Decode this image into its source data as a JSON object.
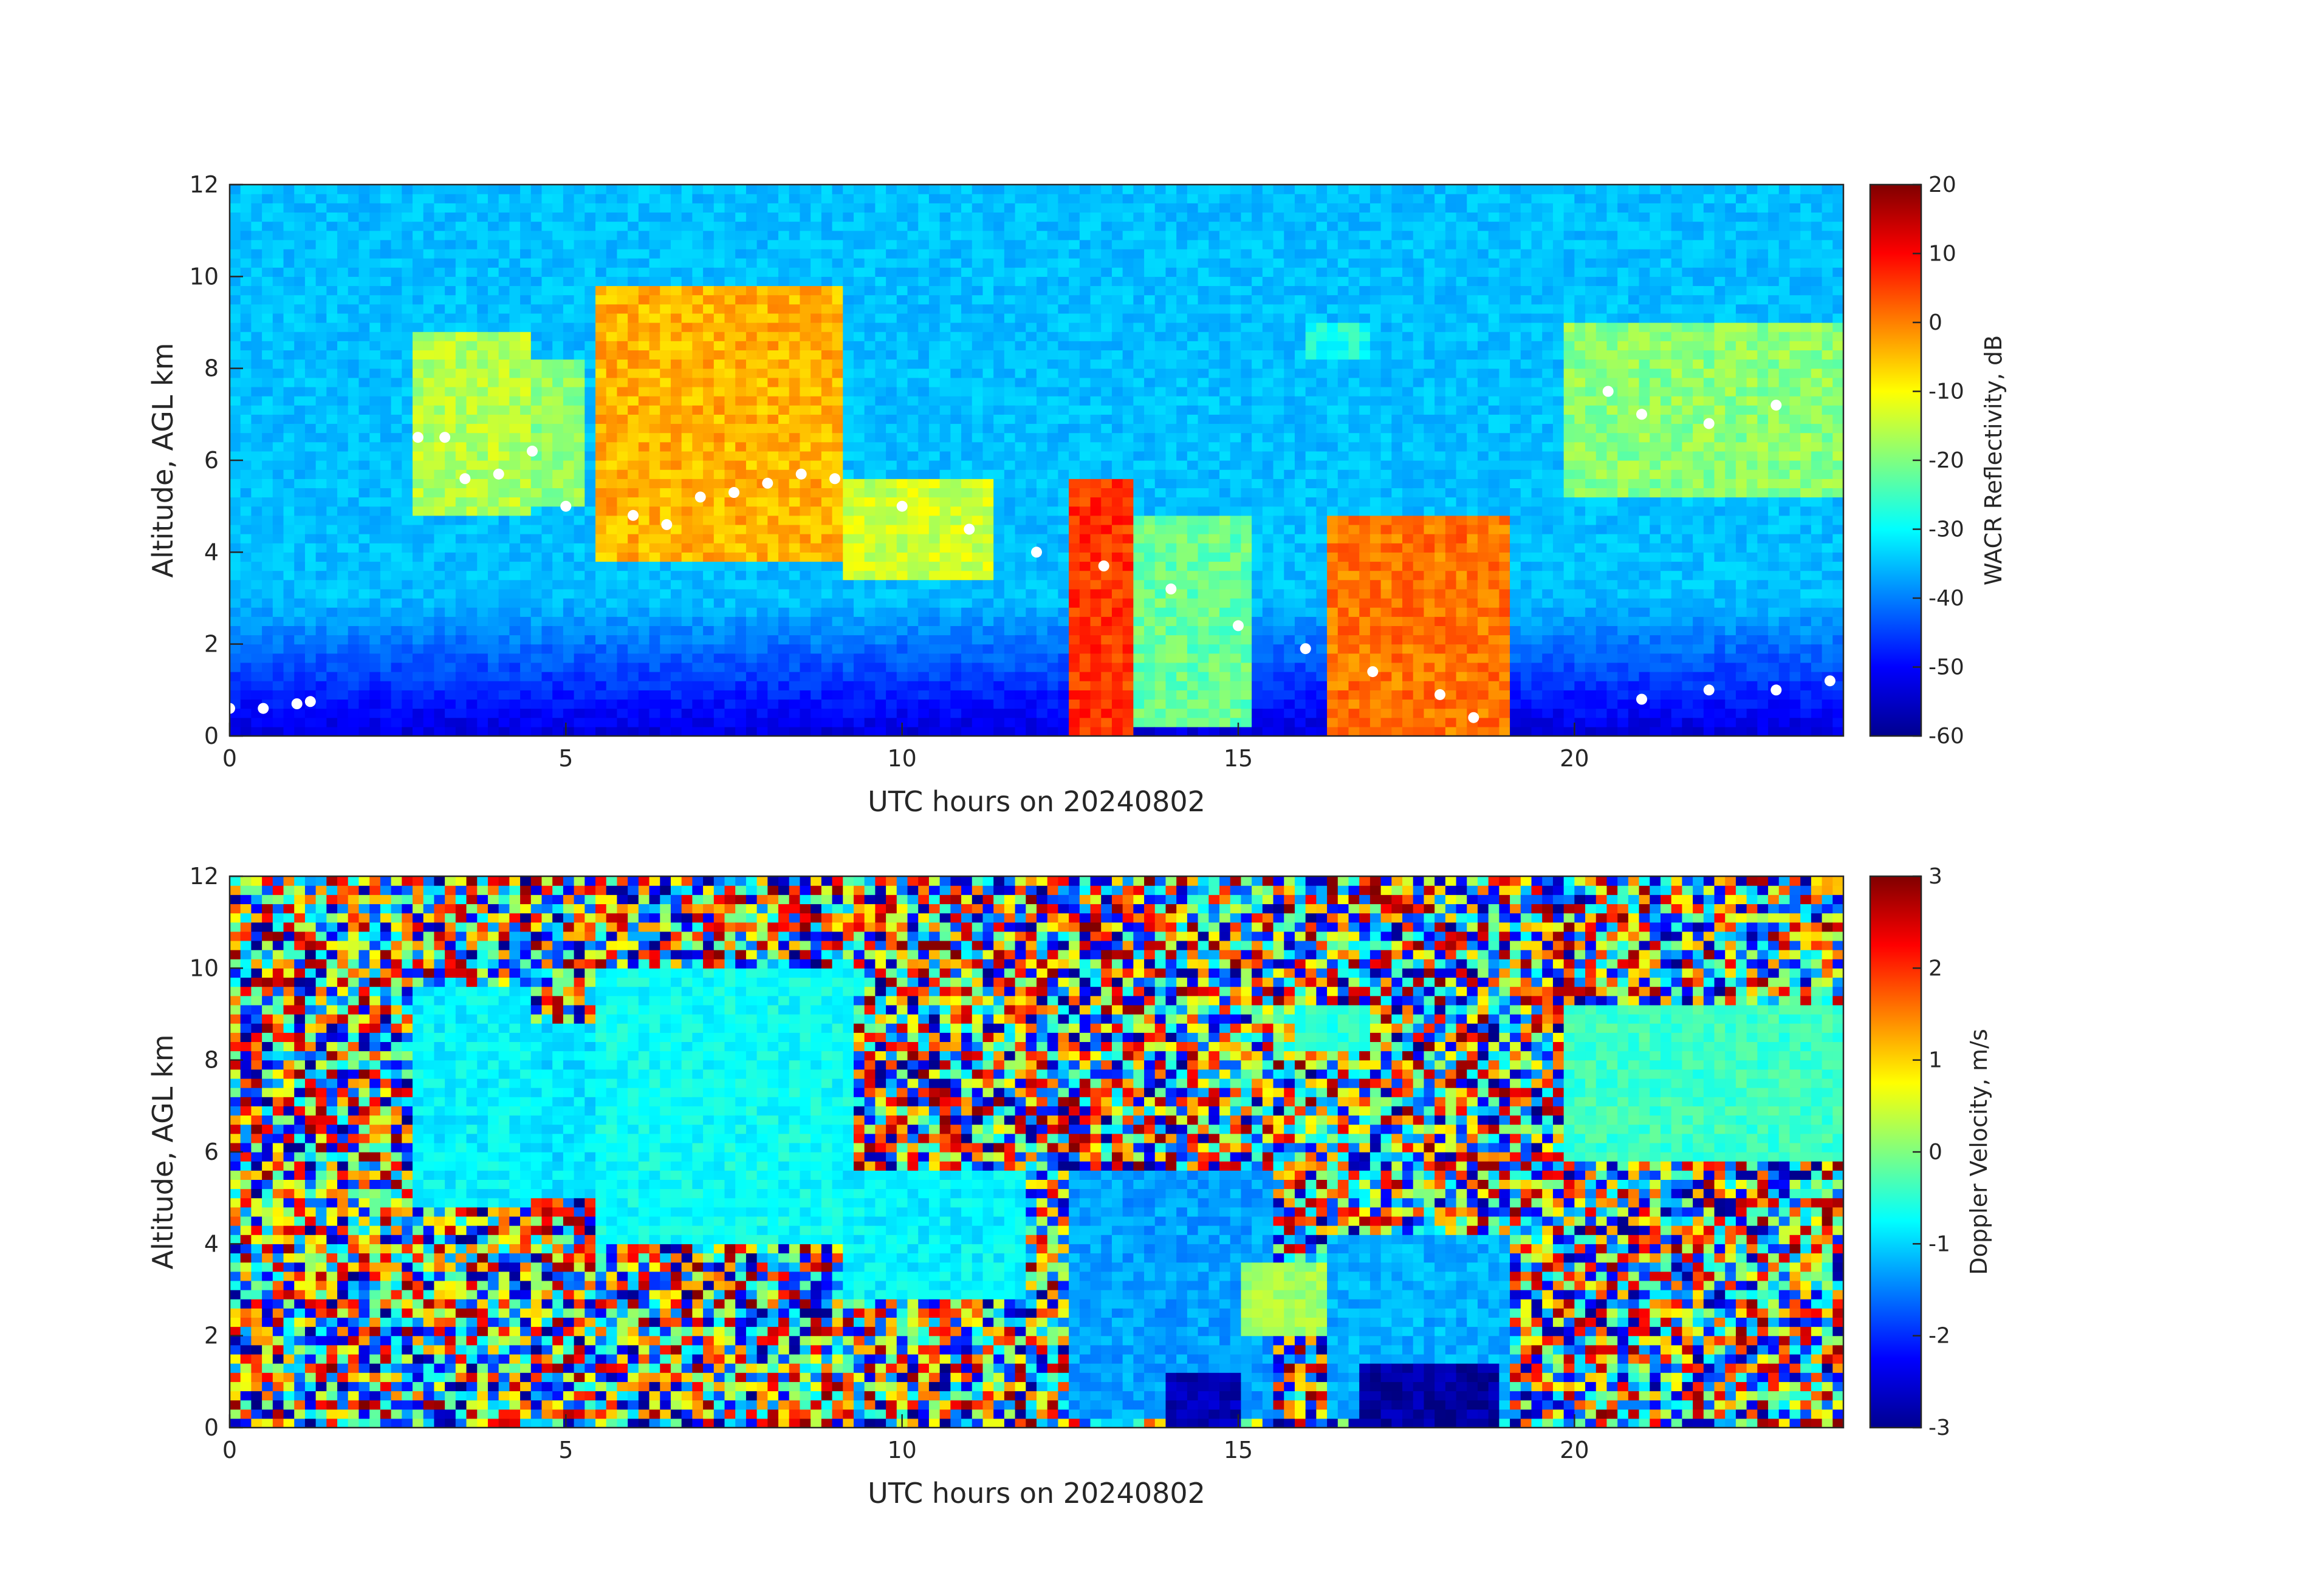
{
  "chart_data": [
    {
      "type": "heatmap",
      "title": "",
      "xlabel": "UTC hours on 20240802",
      "ylabel": "Altitude, AGL km",
      "xlim": [
        0,
        24
      ],
      "ylim": [
        0,
        12
      ],
      "xticks": [
        0,
        5,
        10,
        15,
        20
      ],
      "yticks": [
        0,
        2,
        4,
        6,
        8,
        10,
        12
      ],
      "colorbar": {
        "label": "WACR Reflectivity, dB",
        "range": [
          -60,
          20
        ],
        "ticks": [
          20,
          10,
          0,
          -10,
          -20,
          -30,
          -40,
          -50,
          -60
        ],
        "colormap": "jet"
      },
      "background_noise_db": -35,
      "cloud_regions": [
        {
          "t": [
            2.7,
            4.5
          ],
          "base_km": 4.9,
          "top_km": 8.8,
          "peak_db": -12
        },
        {
          "t": [
            4.5,
            5.2
          ],
          "base_km": 5.0,
          "top_km": 8.2,
          "peak_db": -15
        },
        {
          "t": [
            5.5,
            9.2
          ],
          "base_km": 3.8,
          "top_km": 9.8,
          "peak_db": 0
        },
        {
          "t": [
            9.2,
            11.3
          ],
          "base_km": 3.5,
          "top_km": 5.5,
          "peak_db": -10
        },
        {
          "t": [
            12.5,
            13.5
          ],
          "base_km": 0.1,
          "top_km": 5.6,
          "peak_db": 10
        },
        {
          "t": [
            13.5,
            15.2
          ],
          "base_km": 0.2,
          "top_km": 4.8,
          "peak_db": -18
        },
        {
          "t": [
            16.0,
            16.9
          ],
          "base_km": 8.2,
          "top_km": 8.9,
          "peak_db": -24
        },
        {
          "t": [
            16.3,
            19.0
          ],
          "base_km": 0.1,
          "top_km": 4.8,
          "peak_db": 5
        },
        {
          "t": [
            19.8,
            24.0
          ],
          "base_km": 5.2,
          "top_km": 9.0,
          "peak_db": -15
        }
      ],
      "cloud_base_points": [
        {
          "x": 0.0,
          "y": 0.6
        },
        {
          "x": 0.5,
          "y": 0.6
        },
        {
          "x": 1.0,
          "y": 0.7
        },
        {
          "x": 1.2,
          "y": 0.75
        },
        {
          "x": 2.8,
          "y": 6.5
        },
        {
          "x": 3.2,
          "y": 6.5
        },
        {
          "x": 3.5,
          "y": 5.6
        },
        {
          "x": 4.0,
          "y": 5.7
        },
        {
          "x": 4.5,
          "y": 6.2
        },
        {
          "x": 5.0,
          "y": 5.0
        },
        {
          "x": 6.0,
          "y": 4.8
        },
        {
          "x": 6.5,
          "y": 4.6
        },
        {
          "x": 7.0,
          "y": 5.2
        },
        {
          "x": 7.5,
          "y": 5.3
        },
        {
          "x": 8.0,
          "y": 5.5
        },
        {
          "x": 8.5,
          "y": 5.7
        },
        {
          "x": 9.0,
          "y": 5.6
        },
        {
          "x": 10.0,
          "y": 5.0
        },
        {
          "x": 11.0,
          "y": 4.5
        },
        {
          "x": 12.0,
          "y": 4.0
        },
        {
          "x": 13.0,
          "y": 3.7
        },
        {
          "x": 14.0,
          "y": 3.2
        },
        {
          "x": 15.0,
          "y": 2.4
        },
        {
          "x": 16.0,
          "y": 1.9
        },
        {
          "x": 17.0,
          "y": 1.4
        },
        {
          "x": 18.0,
          "y": 0.9
        },
        {
          "x": 18.5,
          "y": 0.4
        },
        {
          "x": 20.5,
          "y": 7.5
        },
        {
          "x": 21.0,
          "y": 7.0
        },
        {
          "x": 22.0,
          "y": 6.8
        },
        {
          "x": 23.0,
          "y": 7.2
        },
        {
          "x": 21.0,
          "y": 0.8
        },
        {
          "x": 22.0,
          "y": 1.0
        },
        {
          "x": 23.0,
          "y": 1.0
        },
        {
          "x": 23.8,
          "y": 1.2
        }
      ]
    },
    {
      "type": "heatmap",
      "title": "",
      "xlabel": "UTC hours on 20240802",
      "ylabel": "Altitude, AGL km",
      "xlim": [
        0,
        24
      ],
      "ylim": [
        0,
        12
      ],
      "xticks": [
        0,
        5,
        10,
        15,
        20
      ],
      "yticks": [
        0,
        2,
        4,
        6,
        8,
        10,
        12
      ],
      "colorbar": {
        "label": "Doppler Velocity, m/s",
        "range": [
          -3,
          3
        ],
        "ticks": [
          3,
          2,
          1,
          0,
          -1,
          -2,
          -3
        ],
        "colormap": "jet"
      },
      "background": "random noise across full range",
      "cloud_regions": [
        {
          "t": [
            2.7,
            4.5
          ],
          "base_km": 4.8,
          "top_km": 9.6,
          "velocity": -0.8
        },
        {
          "t": [
            4.5,
            5.4
          ],
          "base_km": 5.0,
          "top_km": 8.8,
          "velocity": -0.9
        },
        {
          "t": [
            5.5,
            9.3
          ],
          "base_km": 4.0,
          "top_km": 10.0,
          "velocity": -0.7
        },
        {
          "t": [
            9.2,
            11.8
          ],
          "base_km": 2.8,
          "top_km": 5.5,
          "velocity": -0.8
        },
        {
          "t": [
            12.5,
            15.5
          ],
          "base_km": 0.2,
          "top_km": 5.5,
          "velocity": -1.3
        },
        {
          "t": [
            14.0,
            15.0
          ],
          "base_km": 0.1,
          "top_km": 1.2,
          "velocity": -2.7
        },
        {
          "t": [
            15.0,
            16.5
          ],
          "base_km": 2.0,
          "top_km": 3.5,
          "velocity": 0.2
        },
        {
          "t": [
            15.8,
            17.0
          ],
          "base_km": 8.2,
          "top_km": 9.2,
          "velocity": -0.5
        },
        {
          "t": [
            16.3,
            19.0
          ],
          "base_km": 0.2,
          "top_km": 4.2,
          "velocity": -1.2
        },
        {
          "t": [
            16.8,
            18.8
          ],
          "base_km": 0.1,
          "top_km": 1.3,
          "velocity": -2.8
        },
        {
          "t": [
            19.8,
            24.0
          ],
          "base_km": 5.8,
          "top_km": 9.2,
          "velocity": -0.4
        }
      ]
    }
  ]
}
